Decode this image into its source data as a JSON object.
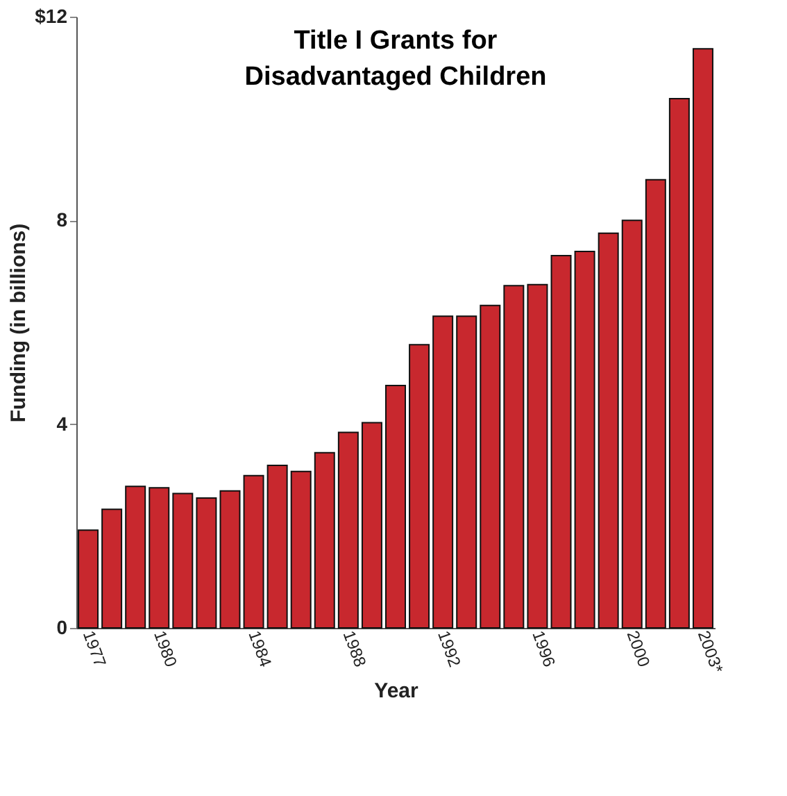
{
  "chart_data": {
    "type": "bar",
    "title": "Title I Grants for\nDisadvantaged Children",
    "xlabel": "Year",
    "ylabel": "Funding (in billions)",
    "categories": [
      "1977",
      null,
      null,
      "1980",
      null,
      null,
      null,
      "1984",
      null,
      null,
      null,
      "1988",
      null,
      null,
      null,
      "1992",
      null,
      null,
      null,
      "1996",
      null,
      null,
      null,
      "2000",
      null,
      null,
      "2003*"
    ],
    "series": [
      {
        "color": "#c8282e",
        "values": [
          1.92,
          2.33,
          2.78,
          2.75,
          2.64,
          2.55,
          2.69,
          2.99,
          3.19,
          3.07,
          3.44,
          3.84,
          4.03,
          4.76,
          5.56,
          6.12,
          6.12,
          6.33,
          6.72,
          6.74,
          7.31,
          7.39,
          7.75,
          8.0,
          8.8,
          10.39,
          11.37
        ]
      }
    ],
    "ylim": [
      0,
      12
    ],
    "yticks": [
      0,
      4,
      8,
      {
        "value": 12,
        "label": "$12"
      }
    ],
    "grid": false
  }
}
